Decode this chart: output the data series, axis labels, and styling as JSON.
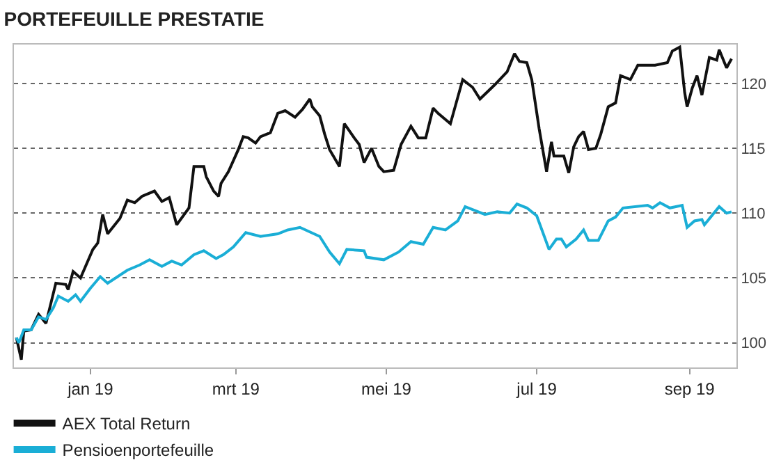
{
  "chart_data": {
    "type": "line",
    "title": "PORTEFEUILLE PRESTATIE",
    "xlim": [
      "2018-12-01",
      "2019-09-20"
    ],
    "xticks": [
      {
        "value": "2019-01-01",
        "label": "jan 19"
      },
      {
        "value": "2019-03-01",
        "label": "mrt 19"
      },
      {
        "value": "2019-05-01",
        "label": "mei 19"
      },
      {
        "value": "2019-07-01",
        "label": "jul 19"
      },
      {
        "value": "2019-09-01",
        "label": "sep 19"
      }
    ],
    "ylim": [
      98.1,
      123
    ],
    "yticks": [
      100,
      105,
      110,
      115,
      120
    ],
    "grid": "y",
    "legend": "bottom",
    "marker": "none",
    "line_style": "solid",
    "series": [
      {
        "name": "AEX Total Return",
        "color": "#111111",
        "x": [
          "2018-12-02",
          "2018-12-04",
          "2018-12-05",
          "2018-12-08",
          "2018-12-11",
          "2018-12-14",
          "2018-12-18",
          "2018-12-22",
          "2018-12-23",
          "2018-12-25",
          "2018-12-28",
          "2019-01-02",
          "2019-01-04",
          "2019-01-06",
          "2019-01-08",
          "2019-01-13",
          "2019-01-16",
          "2019-01-19",
          "2019-01-22",
          "2019-01-27",
          "2019-01-30",
          "2019-02-02",
          "2019-02-05",
          "2019-02-10",
          "2019-02-12",
          "2019-02-16",
          "2019-02-17",
          "2019-02-20",
          "2019-02-22",
          "2019-02-23",
          "2019-02-26",
          "2019-03-02",
          "2019-03-04",
          "2019-03-06",
          "2019-03-09",
          "2019-03-11",
          "2019-03-15",
          "2019-03-18",
          "2019-03-21",
          "2019-03-25",
          "2019-03-28",
          "2019-03-31",
          "2019-04-01",
          "2019-04-04",
          "2019-04-06",
          "2019-04-08",
          "2019-04-12",
          "2019-04-14",
          "2019-04-18",
          "2019-04-20",
          "2019-04-22",
          "2019-04-25",
          "2019-04-28",
          "2019-04-30",
          "2019-05-04",
          "2019-05-07",
          "2019-05-11",
          "2019-05-14",
          "2019-05-17",
          "2019-05-20",
          "2019-05-22",
          "2019-05-27",
          "2019-06-01",
          "2019-06-05",
          "2019-06-08",
          "2019-06-14",
          "2019-06-19",
          "2019-06-22",
          "2019-06-24",
          "2019-06-27",
          "2019-06-29",
          "2019-07-02",
          "2019-07-05",
          "2019-07-07",
          "2019-07-08",
          "2019-07-12",
          "2019-07-14",
          "2019-07-16",
          "2019-07-18",
          "2019-07-20",
          "2019-07-22",
          "2019-07-25",
          "2019-07-27",
          "2019-07-30",
          "2019-08-02",
          "2019-08-04",
          "2019-08-08",
          "2019-08-11",
          "2019-08-18",
          "2019-08-23",
          "2019-08-25",
          "2019-08-28",
          "2019-08-30",
          "2019-08-31",
          "2019-09-02",
          "2019-09-04",
          "2019-09-06",
          "2019-09-09",
          "2019-09-12",
          "2019-09-13",
          "2019-09-16",
          "2019-09-18"
        ],
        "values": [
          100.4,
          98.7,
          100.9,
          101,
          102.2,
          101.5,
          104.6,
          104.5,
          104.1,
          105.5,
          105,
          107.2,
          107.7,
          109.9,
          108.4,
          109.6,
          111,
          110.8,
          111.3,
          111.7,
          110.9,
          111.2,
          109.1,
          110.4,
          113.6,
          113.6,
          112.8,
          111.7,
          111.3,
          112.3,
          113.2,
          114.9,
          115.9,
          115.8,
          115.4,
          115.9,
          116.2,
          117.7,
          117.9,
          117.4,
          118,
          118.8,
          118.2,
          117.5,
          116.1,
          114.9,
          113.6,
          116.9,
          115.8,
          115.3,
          113.9,
          115,
          113.6,
          113.2,
          113.3,
          115.3,
          116.7,
          115.8,
          115.8,
          118.1,
          117.7,
          116.9,
          120.3,
          119.7,
          118.8,
          119.9,
          120.9,
          122.3,
          121.7,
          121.6,
          120.3,
          116.5,
          113.2,
          115.5,
          114.4,
          114.4,
          113.1,
          115.1,
          115.9,
          116.3,
          114.9,
          115,
          116.1,
          118.2,
          118.5,
          120.6,
          120.3,
          121.4,
          121.4,
          121.6,
          122.5,
          122.8,
          119.3,
          118.2,
          119.6,
          120.6,
          119.1,
          122,
          121.8,
          122.6,
          121.2,
          121.9
        ]
      },
      {
        "name": "Pensioenportefeuille",
        "color": "#1aaed6",
        "x": [
          "2018-12-02",
          "2018-12-03",
          "2018-12-05",
          "2018-12-08",
          "2018-12-11",
          "2018-12-14",
          "2018-12-17",
          "2018-12-19",
          "2018-12-23",
          "2018-12-26",
          "2018-12-28",
          "2019-01-01",
          "2019-01-05",
          "2019-01-08",
          "2019-01-16",
          "2019-01-21",
          "2019-01-25",
          "2019-01-30",
          "2019-02-03",
          "2019-02-07",
          "2019-02-12",
          "2019-02-16",
          "2019-02-21",
          "2019-02-24",
          "2019-02-28",
          "2019-03-05",
          "2019-03-11",
          "2019-03-18",
          "2019-03-22",
          "2019-03-27",
          "2019-04-04",
          "2019-04-08",
          "2019-04-12",
          "2019-04-15",
          "2019-04-22",
          "2019-04-23",
          "2019-04-30",
          "2019-05-06",
          "2019-05-11",
          "2019-05-16",
          "2019-05-20",
          "2019-05-25",
          "2019-05-30",
          "2019-06-02",
          "2019-06-10",
          "2019-06-15",
          "2019-06-20",
          "2019-06-23",
          "2019-06-27",
          "2019-07-01",
          "2019-07-06",
          "2019-07-09",
          "2019-07-11",
          "2019-07-13",
          "2019-07-17",
          "2019-07-20",
          "2019-07-22",
          "2019-07-26",
          "2019-07-30",
          "2019-08-02",
          "2019-08-05",
          "2019-08-15",
          "2019-08-17",
          "2019-08-20",
          "2019-08-24",
          "2019-08-29",
          "2019-08-31",
          "2019-09-03",
          "2019-09-06",
          "2019-09-07",
          "2019-09-13",
          "2019-09-16",
          "2019-09-18"
        ],
        "values": [
          100.4,
          100,
          101,
          101,
          102,
          101.8,
          102.7,
          103.6,
          103.2,
          103.7,
          103.2,
          104.2,
          105.1,
          104.6,
          105.6,
          106,
          106.4,
          105.9,
          106.3,
          106,
          106.8,
          107.1,
          106.5,
          106.8,
          107.4,
          108.5,
          108.2,
          108.4,
          108.7,
          108.9,
          108.2,
          107,
          106.1,
          107.2,
          107.1,
          106.6,
          106.4,
          107,
          107.8,
          107.6,
          108.9,
          108.7,
          109.4,
          110.5,
          109.9,
          110.1,
          110,
          110.7,
          110.4,
          109.8,
          107.2,
          108,
          108,
          107.4,
          108,
          108.7,
          107.9,
          107.9,
          109.4,
          109.7,
          110.4,
          110.6,
          110.4,
          110.8,
          110.4,
          110.6,
          108.9,
          109.4,
          109.5,
          109.1,
          110.5,
          110,
          110.1
        ]
      }
    ]
  }
}
